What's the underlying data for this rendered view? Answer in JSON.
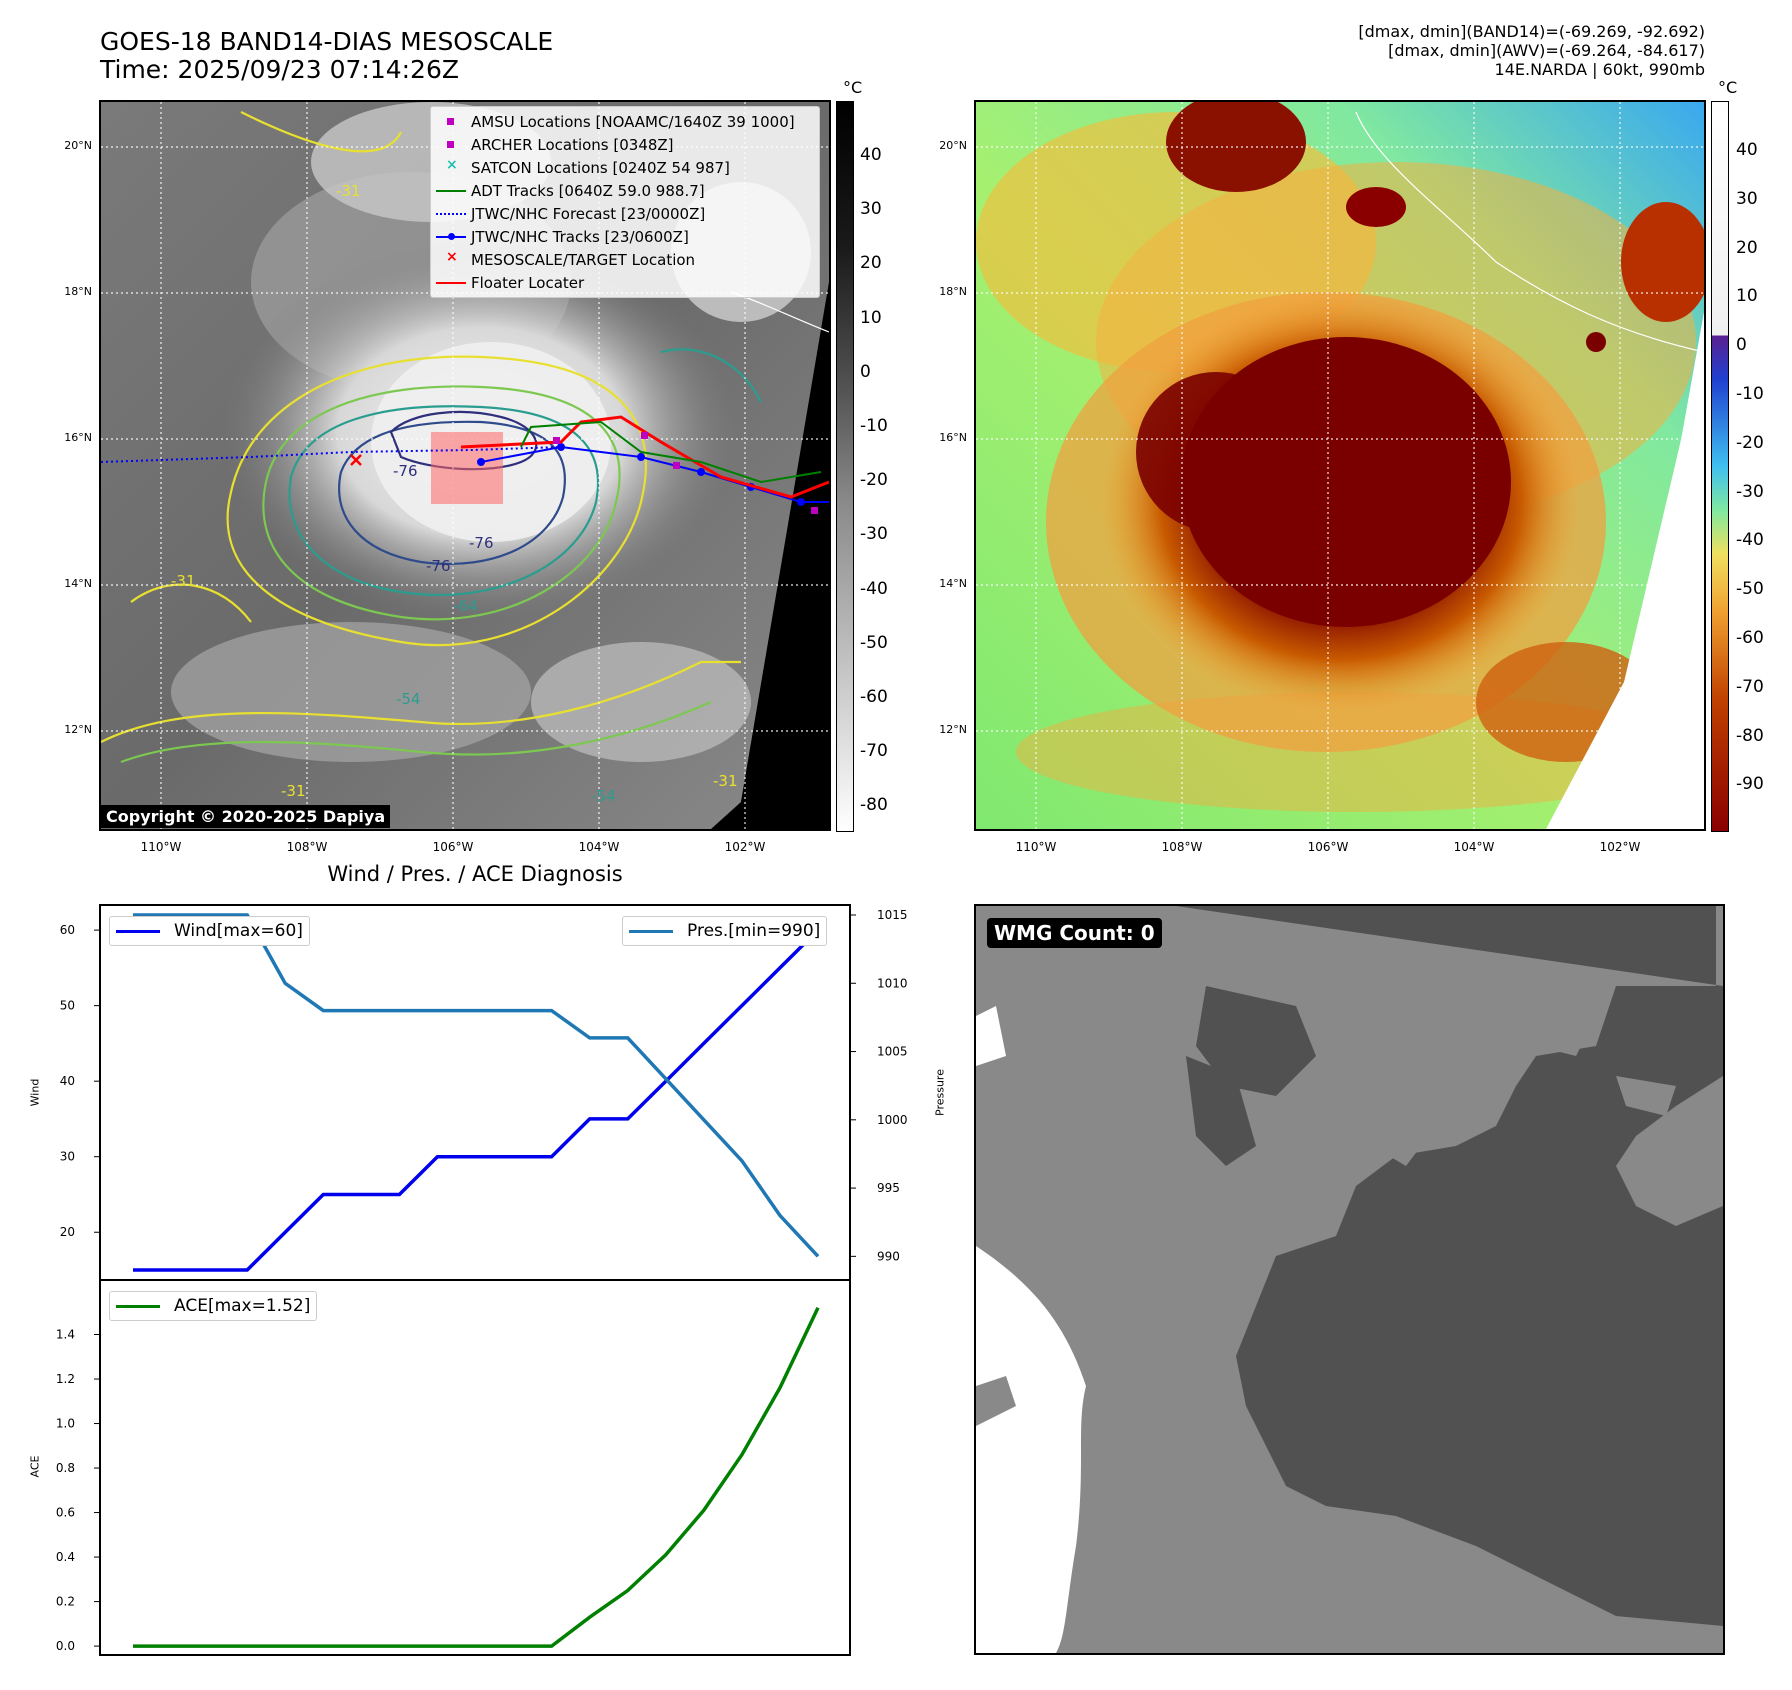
{
  "header": {
    "title_line1": "GOES-18 BAND14-DIAS MESOSCALE",
    "title_line2": "Time: 2025/09/23 07:14:26Z",
    "stats_line1": "[dmax, dmin](BAND14)=(-69.269, -92.692)",
    "stats_line2": "[dmax, dmin](AWV)=(-69.264, -84.617)",
    "stats_line3": "14E.NARDA | 60kt, 990mb"
  },
  "map_axes": {
    "lat_labels": [
      "20°N",
      "18°N",
      "16°N",
      "14°N",
      "12°N"
    ],
    "lon_labels": [
      "110°W",
      "108°W",
      "106°W",
      "104°W",
      "102°W"
    ]
  },
  "left_map": {
    "copyright": "Copyright © 2020-2025 Dapiya",
    "contour_labels": [
      "-76",
      "-76",
      "-76",
      "-64",
      "-54",
      "-54",
      "-31",
      "-31",
      "-31",
      "-31"
    ],
    "legend": [
      {
        "label": "AMSU Locations [NOAAMC/1640Z 39 1000]",
        "symbol": "square",
        "color": "#c000c0"
      },
      {
        "label": "ARCHER Locations [0348Z]",
        "symbol": "square",
        "color": "#c000c0"
      },
      {
        "label": "SATCON Locations [0240Z 54 987]",
        "symbol": "x",
        "color": "#20c0b0"
      },
      {
        "label": "ADT Tracks [0640Z 59.0 988.7]",
        "symbol": "line",
        "color": "#008000"
      },
      {
        "label": "JTWC/NHC Forecast [23/0000Z]",
        "symbol": "dotted",
        "color": "#0000ff"
      },
      {
        "label": "JTWC/NHC Tracks [23/0600Z]",
        "symbol": "line-dot",
        "color": "#0000ff"
      },
      {
        "label": "MESOSCALE/TARGET Location",
        "symbol": "x",
        "color": "#ff0000"
      },
      {
        "label": "Floater Locater",
        "symbol": "line",
        "color": "#ff0000"
      }
    ]
  },
  "left_colorbar": {
    "unit": "°C",
    "ticks": [
      "40",
      "30",
      "20",
      "10",
      "0",
      "-10",
      "-20",
      "-30",
      "-40",
      "-50",
      "-60",
      "-70",
      "-80"
    ]
  },
  "right_colorbar": {
    "unit": "°C",
    "ticks": [
      "40",
      "30",
      "20",
      "10",
      "0",
      "-10",
      "-20",
      "-30",
      "-40",
      "-50",
      "-60",
      "-70",
      "-80",
      "-90"
    ]
  },
  "diagnosis": {
    "title": "Wind / Pres. / ACE Diagnosis",
    "wind_legend": "Wind[max=60]",
    "pres_legend": "Pres.[min=990]",
    "ace_legend": "ACE[max=1.52]",
    "wind_ylabel": "Wind",
    "pres_ylabel": "Pressure",
    "ace_ylabel": "ACE",
    "wind_ticks": [
      "60",
      "50",
      "40",
      "30",
      "20"
    ],
    "pres_ticks": [
      "1015",
      "1010",
      "1005",
      "1000",
      "995",
      "990"
    ],
    "ace_ticks": [
      "1.4",
      "1.2",
      "1.0",
      "0.8",
      "0.6",
      "0.4",
      "0.2",
      "0.0"
    ]
  },
  "wmg": {
    "label": "WMG Count: 0"
  },
  "colors": {
    "wind": "#0000ee",
    "pressure": "#1f77b4",
    "ace": "#008000",
    "wmg_light": "#898989",
    "wmg_dark": "#515151"
  },
  "chart_data": [
    {
      "type": "line",
      "title": "Wind / Pres. / ACE Diagnosis",
      "series": [
        {
          "name": "Wind[max=60]",
          "axis": "left",
          "values": [
            15,
            15,
            15,
            15,
            20,
            25,
            25,
            25,
            30,
            30,
            30,
            30,
            35,
            35,
            40,
            45,
            50,
            55,
            60
          ]
        },
        {
          "name": "Pres.[min=990]",
          "axis": "right",
          "values": [
            1015,
            1015,
            1015,
            1015,
            1010,
            1008,
            1008,
            1008,
            1008,
            1008,
            1008,
            1008,
            1006,
            1006,
            1003,
            1000,
            997,
            993,
            990
          ]
        }
      ],
      "ylabel": "Wind",
      "ylim": [
        15,
        62
      ],
      "y2label": "Pressure",
      "y2lim": [
        989,
        1015
      ]
    },
    {
      "type": "line",
      "series": [
        {
          "name": "ACE[max=1.52]",
          "values": [
            0,
            0,
            0,
            0,
            0,
            0,
            0,
            0,
            0,
            0,
            0,
            0,
            0.13,
            0.25,
            0.41,
            0.61,
            0.86,
            1.16,
            1.52
          ]
        }
      ],
      "ylabel": "ACE",
      "ylim": [
        -0.04,
        1.6
      ]
    }
  ]
}
